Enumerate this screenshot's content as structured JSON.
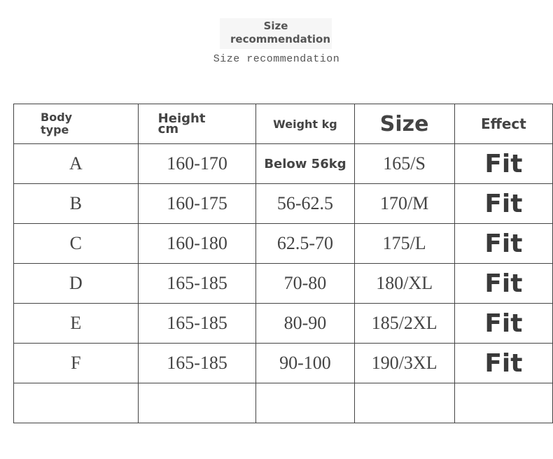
{
  "header": {
    "title": "Size recommendation",
    "subtitle": "Size recommendation"
  },
  "table": {
    "columns": {
      "body_type": "Body type",
      "height": "Height cm",
      "weight": "Weight kg",
      "size": "Size",
      "effect": "Effect"
    },
    "rows": [
      {
        "body_type": "A",
        "height": "160-170",
        "weight": "Below 56kg",
        "size": "165/S",
        "effect": "Fit"
      },
      {
        "body_type": "B",
        "height": "160-175",
        "weight": "56-62.5",
        "size": "170/M",
        "effect": "Fit"
      },
      {
        "body_type": "C",
        "height": "160-180",
        "weight": "62.5-70",
        "size": "175/L",
        "effect": "Fit"
      },
      {
        "body_type": "D",
        "height": "165-185",
        "weight": "70-80",
        "size": "180/XL",
        "effect": "Fit"
      },
      {
        "body_type": "E",
        "height": "165-185",
        "weight": "80-90",
        "size": "185/2XL",
        "effect": "Fit"
      },
      {
        "body_type": "F",
        "height": "165-185",
        "weight": "90-100",
        "size": "190/3XL",
        "effect": "Fit"
      },
      {
        "body_type": "",
        "height": "",
        "weight": "",
        "size": "",
        "effect": ""
      }
    ]
  }
}
